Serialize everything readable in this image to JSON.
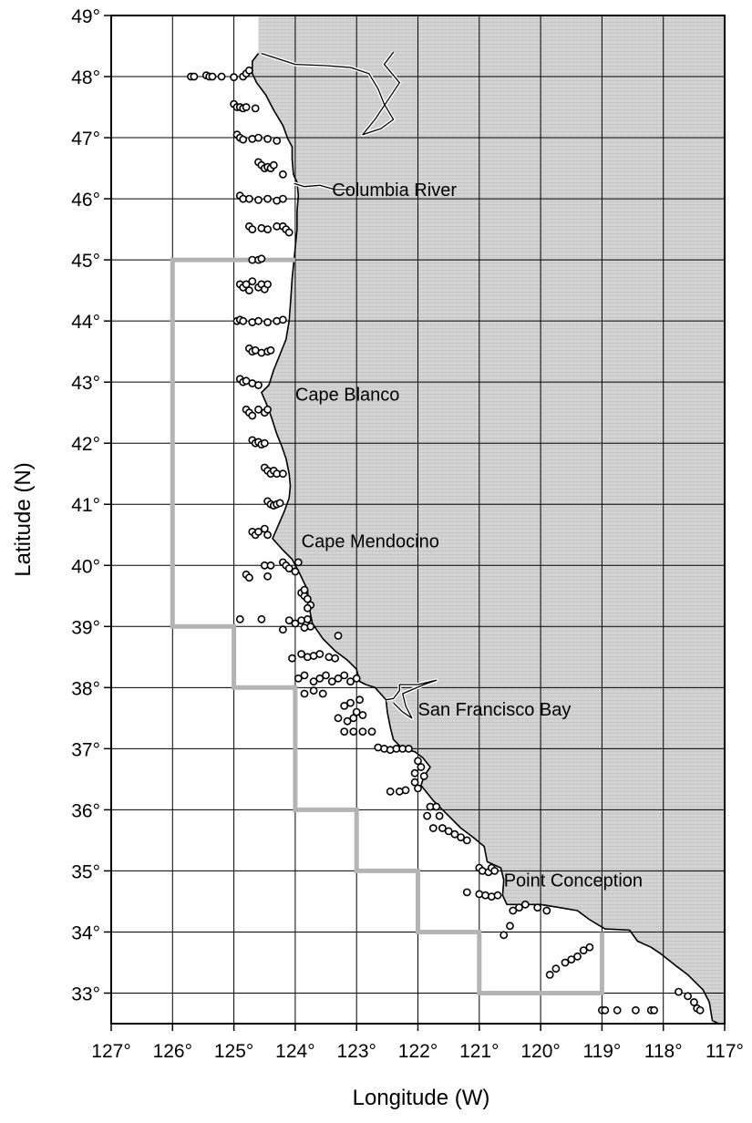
{
  "chart_data": {
    "type": "map",
    "title": "",
    "xlabel": "Longitude (W)",
    "ylabel": "Latitude (N)",
    "x_range": [
      127,
      117
    ],
    "y_range": [
      32.5,
      49
    ],
    "x_ticks": [
      127,
      126,
      125,
      124,
      123,
      122,
      121,
      120,
      119,
      118,
      117
    ],
    "y_ticks": [
      33,
      34,
      35,
      36,
      37,
      38,
      39,
      40,
      41,
      42,
      43,
      44,
      45,
      46,
      47,
      48,
      49
    ],
    "x_tick_labels": [
      "127°",
      "126°",
      "125°",
      "124°",
      "123°",
      "122°",
      "121°",
      "120°",
      "119°",
      "118°",
      "117°"
    ],
    "y_tick_labels": [
      "33°",
      "34°",
      "35°",
      "36°",
      "37°",
      "38°",
      "39°",
      "40°",
      "41°",
      "42°",
      "43°",
      "44°",
      "45°",
      "46°",
      "47°",
      "48°",
      "49°"
    ],
    "grid": true,
    "place_labels": [
      {
        "text": "Columbia River",
        "lon": 123.4,
        "lat": 46.15
      },
      {
        "text": "Cape Blanco",
        "lon": 124.0,
        "lat": 42.8
      },
      {
        "text": "Cape Mendocino",
        "lon": 123.9,
        "lat": 40.4
      },
      {
        "text": "San Francisco Bay",
        "lon": 122.0,
        "lat": 37.65
      },
      {
        "text": "Point Conception",
        "lon": 120.6,
        "lat": 34.85
      }
    ],
    "coastline": [
      [
        124.6,
        48.38
      ],
      [
        124.7,
        48.25
      ],
      [
        124.7,
        48.05
      ],
      [
        124.63,
        47.9
      ],
      [
        124.48,
        47.7
      ],
      [
        124.35,
        47.45
      ],
      [
        124.2,
        47.2
      ],
      [
        124.12,
        46.98
      ],
      [
        124.05,
        46.85
      ],
      [
        124.05,
        46.65
      ],
      [
        124.03,
        46.4
      ],
      [
        123.97,
        46.27
      ],
      [
        123.95,
        46.05
      ],
      [
        123.97,
        45.8
      ],
      [
        123.97,
        45.5
      ],
      [
        124.0,
        45.2
      ],
      [
        124.02,
        45.0
      ],
      [
        124.05,
        44.7
      ],
      [
        124.07,
        44.4
      ],
      [
        124.1,
        44.0
      ],
      [
        124.15,
        43.7
      ],
      [
        124.25,
        43.45
      ],
      [
        124.35,
        43.2
      ],
      [
        124.43,
        42.95
      ],
      [
        124.55,
        42.83
      ],
      [
        124.45,
        42.6
      ],
      [
        124.38,
        42.4
      ],
      [
        124.3,
        42.15
      ],
      [
        124.22,
        41.95
      ],
      [
        124.15,
        41.75
      ],
      [
        124.1,
        41.5
      ],
      [
        124.08,
        41.3
      ],
      [
        124.1,
        41.1
      ],
      [
        124.18,
        40.88
      ],
      [
        124.3,
        40.6
      ],
      [
        124.37,
        40.44
      ],
      [
        124.2,
        40.25
      ],
      [
        124.05,
        40.1
      ],
      [
        123.92,
        39.85
      ],
      [
        123.8,
        39.6
      ],
      [
        123.78,
        39.35
      ],
      [
        123.72,
        39.05
      ],
      [
        123.55,
        38.8
      ],
      [
        123.35,
        38.6
      ],
      [
        123.15,
        38.45
      ],
      [
        123.0,
        38.3
      ],
      [
        122.95,
        38.1
      ],
      [
        122.85,
        38.05
      ],
      [
        122.7,
        38.0
      ],
      [
        122.52,
        37.8
      ],
      [
        122.5,
        37.6
      ],
      [
        122.45,
        37.35
      ],
      [
        122.4,
        37.15
      ],
      [
        122.25,
        37.0
      ],
      [
        122.05,
        36.95
      ],
      [
        121.92,
        36.85
      ],
      [
        121.8,
        36.7
      ],
      [
        121.9,
        36.55
      ],
      [
        121.95,
        36.4
      ],
      [
        121.75,
        36.15
      ],
      [
        121.5,
        35.9
      ],
      [
        121.3,
        35.7
      ],
      [
        121.1,
        35.55
      ],
      [
        120.92,
        35.4
      ],
      [
        120.87,
        35.15
      ],
      [
        120.65,
        35.05
      ],
      [
        120.6,
        34.85
      ],
      [
        120.62,
        34.6
      ],
      [
        120.55,
        34.45
      ],
      [
        120.3,
        34.45
      ],
      [
        120.0,
        34.45
      ],
      [
        119.7,
        34.4
      ],
      [
        119.4,
        34.35
      ],
      [
        119.2,
        34.2
      ],
      [
        118.95,
        34.05
      ],
      [
        118.55,
        34.03
      ],
      [
        118.42,
        33.85
      ],
      [
        118.2,
        33.75
      ],
      [
        118.05,
        33.65
      ],
      [
        117.8,
        33.45
      ],
      [
        117.6,
        33.3
      ],
      [
        117.35,
        33.05
      ],
      [
        117.25,
        32.85
      ],
      [
        117.2,
        32.55
      ],
      [
        117.1,
        32.5
      ],
      [
        117.0,
        32.5
      ]
    ],
    "ocean_boundary": [
      [
        126,
        45
      ],
      [
        124,
        45
      ],
      [
        124,
        39
      ],
      [
        126,
        39
      ]
    ],
    "management_boundary": [
      [
        124,
        45
      ],
      [
        126,
        45
      ],
      [
        126,
        39
      ],
      [
        125,
        39
      ],
      [
        125,
        38
      ],
      [
        124,
        38
      ],
      [
        124,
        36
      ],
      [
        123,
        36
      ],
      [
        123,
        35
      ],
      [
        122,
        35
      ],
      [
        122,
        34
      ],
      [
        121,
        34
      ],
      [
        121,
        33
      ],
      [
        119,
        33
      ],
      [
        119,
        34
      ]
    ],
    "stations": [
      [
        125.7,
        48.0
      ],
      [
        125.65,
        48.0
      ],
      [
        125.45,
        48.02
      ],
      [
        125.4,
        48.0
      ],
      [
        125.35,
        48.0
      ],
      [
        125.2,
        48.0
      ],
      [
        125.0,
        47.99
      ],
      [
        124.85,
        48.0
      ],
      [
        124.8,
        48.05
      ],
      [
        124.75,
        48.1
      ],
      [
        125.0,
        47.55
      ],
      [
        124.95,
        47.5
      ],
      [
        124.9,
        47.5
      ],
      [
        124.85,
        47.48
      ],
      [
        124.8,
        47.5
      ],
      [
        124.65,
        47.48
      ],
      [
        124.95,
        47.05
      ],
      [
        124.9,
        47.0
      ],
      [
        124.85,
        46.97
      ],
      [
        124.7,
        46.98
      ],
      [
        124.6,
        47.0
      ],
      [
        124.45,
        46.98
      ],
      [
        124.3,
        46.95
      ],
      [
        124.6,
        46.6
      ],
      [
        124.55,
        46.55
      ],
      [
        124.5,
        46.5
      ],
      [
        124.45,
        46.52
      ],
      [
        124.4,
        46.5
      ],
      [
        124.35,
        46.55
      ],
      [
        124.2,
        46.4
      ],
      [
        124.9,
        46.05
      ],
      [
        124.85,
        46.0
      ],
      [
        124.75,
        46.0
      ],
      [
        124.6,
        45.98
      ],
      [
        124.45,
        46.0
      ],
      [
        124.3,
        45.97
      ],
      [
        124.2,
        46.0
      ],
      [
        124.75,
        45.55
      ],
      [
        124.7,
        45.5
      ],
      [
        124.55,
        45.52
      ],
      [
        124.45,
        45.5
      ],
      [
        124.3,
        45.55
      ],
      [
        124.2,
        45.55
      ],
      [
        124.15,
        45.5
      ],
      [
        124.1,
        45.45
      ],
      [
        124.7,
        45.0
      ],
      [
        124.6,
        45.0
      ],
      [
        124.55,
        45.02
      ],
      [
        124.9,
        44.6
      ],
      [
        124.85,
        44.55
      ],
      [
        124.8,
        44.6
      ],
      [
        124.75,
        44.5
      ],
      [
        124.7,
        44.65
      ],
      [
        124.6,
        44.55
      ],
      [
        124.55,
        44.6
      ],
      [
        124.5,
        44.52
      ],
      [
        124.45,
        44.6
      ],
      [
        124.95,
        44.0
      ],
      [
        124.9,
        44.02
      ],
      [
        124.85,
        44.0
      ],
      [
        124.7,
        43.98
      ],
      [
        124.6,
        44.0
      ],
      [
        124.45,
        43.98
      ],
      [
        124.3,
        44.0
      ],
      [
        124.2,
        44.02
      ],
      [
        124.75,
        43.55
      ],
      [
        124.7,
        43.5
      ],
      [
        124.65,
        43.52
      ],
      [
        124.55,
        43.48
      ],
      [
        124.45,
        43.5
      ],
      [
        124.4,
        43.52
      ],
      [
        124.9,
        43.05
      ],
      [
        124.85,
        43.0
      ],
      [
        124.8,
        43.02
      ],
      [
        124.7,
        42.98
      ],
      [
        124.6,
        42.95
      ],
      [
        124.8,
        42.55
      ],
      [
        124.75,
        42.5
      ],
      [
        124.7,
        42.45
      ],
      [
        124.6,
        42.55
      ],
      [
        124.5,
        42.5
      ],
      [
        124.45,
        42.55
      ],
      [
        124.7,
        42.05
      ],
      [
        124.65,
        42.0
      ],
      [
        124.6,
        42.02
      ],
      [
        124.55,
        41.98
      ],
      [
        124.5,
        42.0
      ],
      [
        124.5,
        41.6
      ],
      [
        124.45,
        41.55
      ],
      [
        124.4,
        41.5
      ],
      [
        124.35,
        41.55
      ],
      [
        124.3,
        41.5
      ],
      [
        124.2,
        41.5
      ],
      [
        124.45,
        41.05
      ],
      [
        124.4,
        41.0
      ],
      [
        124.35,
        40.98
      ],
      [
        124.3,
        41.0
      ],
      [
        124.25,
        41.02
      ],
      [
        124.7,
        40.55
      ],
      [
        124.65,
        40.5
      ],
      [
        124.6,
        40.55
      ],
      [
        124.5,
        40.6
      ],
      [
        124.45,
        40.5
      ],
      [
        124.2,
        40.05
      ],
      [
        124.15,
        40.0
      ],
      [
        124.1,
        39.95
      ],
      [
        124.0,
        39.9
      ],
      [
        123.95,
        40.05
      ],
      [
        124.5,
        40.0
      ],
      [
        124.4,
        40.0
      ],
      [
        124.8,
        39.85
      ],
      [
        124.75,
        39.8
      ],
      [
        124.45,
        39.82
      ],
      [
        123.9,
        39.55
      ],
      [
        123.85,
        39.5
      ],
      [
        123.8,
        39.45
      ],
      [
        123.85,
        39.6
      ],
      [
        123.75,
        39.35
      ],
      [
        123.8,
        39.3
      ],
      [
        124.9,
        39.12
      ],
      [
        124.55,
        39.12
      ],
      [
        124.1,
        39.1
      ],
      [
        124.0,
        39.05
      ],
      [
        123.9,
        39.1
      ],
      [
        123.8,
        39.12
      ],
      [
        123.75,
        39.0
      ],
      [
        123.85,
        38.98
      ],
      [
        124.2,
        38.95
      ],
      [
        124.05,
        38.48
      ],
      [
        123.9,
        38.55
      ],
      [
        123.8,
        38.5
      ],
      [
        123.7,
        38.52
      ],
      [
        123.6,
        38.55
      ],
      [
        123.45,
        38.5
      ],
      [
        123.35,
        38.48
      ],
      [
        123.3,
        38.85
      ],
      [
        123.95,
        38.15
      ],
      [
        123.85,
        38.2
      ],
      [
        123.7,
        38.1
      ],
      [
        123.6,
        38.15
      ],
      [
        123.5,
        38.2
      ],
      [
        123.4,
        38.1
      ],
      [
        123.3,
        38.15
      ],
      [
        123.2,
        38.2
      ],
      [
        123.1,
        38.1
      ],
      [
        123.0,
        38.15
      ],
      [
        123.85,
        37.9
      ],
      [
        123.7,
        37.95
      ],
      [
        123.55,
        37.9
      ],
      [
        123.2,
        37.7
      ],
      [
        123.1,
        37.75
      ],
      [
        123.0,
        37.6
      ],
      [
        122.95,
        37.8
      ],
      [
        122.9,
        37.55
      ],
      [
        123.3,
        37.5
      ],
      [
        123.15,
        37.45
      ],
      [
        123.05,
        37.5
      ],
      [
        123.2,
        37.28
      ],
      [
        123.05,
        37.28
      ],
      [
        122.9,
        37.28
      ],
      [
        122.75,
        37.28
      ],
      [
        122.65,
        37.02
      ],
      [
        122.55,
        37.0
      ],
      [
        122.45,
        36.98
      ],
      [
        122.35,
        37.0
      ],
      [
        122.25,
        37.0
      ],
      [
        122.15,
        37.0
      ],
      [
        122.0,
        36.8
      ],
      [
        121.95,
        36.7
      ],
      [
        122.05,
        36.6
      ],
      [
        121.9,
        36.55
      ],
      [
        122.05,
        36.45
      ],
      [
        122.0,
        36.35
      ],
      [
        122.2,
        36.32
      ],
      [
        122.3,
        36.3
      ],
      [
        122.45,
        36.3
      ],
      [
        121.8,
        36.05
      ],
      [
        121.7,
        36.05
      ],
      [
        121.85,
        35.9
      ],
      [
        121.65,
        35.9
      ],
      [
        121.75,
        35.7
      ],
      [
        121.6,
        35.7
      ],
      [
        121.5,
        35.65
      ],
      [
        121.4,
        35.6
      ],
      [
        121.3,
        35.55
      ],
      [
        121.2,
        35.5
      ],
      [
        121.0,
        35.05
      ],
      [
        120.95,
        35.0
      ],
      [
        120.85,
        34.98
      ],
      [
        120.8,
        35.05
      ],
      [
        120.75,
        35.0
      ],
      [
        121.2,
        34.65
      ],
      [
        121.0,
        34.62
      ],
      [
        120.9,
        34.6
      ],
      [
        120.8,
        34.58
      ],
      [
        120.7,
        34.6
      ],
      [
        120.45,
        34.35
      ],
      [
        120.35,
        34.4
      ],
      [
        120.25,
        34.45
      ],
      [
        120.05,
        34.4
      ],
      [
        119.9,
        34.35
      ],
      [
        120.5,
        34.1
      ],
      [
        120.6,
        33.95
      ],
      [
        119.85,
        33.3
      ],
      [
        119.75,
        33.4
      ],
      [
        119.6,
        33.5
      ],
      [
        119.5,
        33.55
      ],
      [
        119.4,
        33.6
      ],
      [
        119.3,
        33.7
      ],
      [
        119.2,
        33.75
      ],
      [
        119.0,
        32.72
      ],
      [
        118.95,
        32.72
      ],
      [
        118.75,
        32.72
      ],
      [
        118.45,
        32.72
      ],
      [
        118.2,
        32.72
      ],
      [
        118.15,
        32.72
      ],
      [
        117.75,
        33.02
      ],
      [
        117.6,
        32.95
      ],
      [
        117.5,
        32.85
      ],
      [
        117.45,
        32.75
      ],
      [
        117.4,
        32.72
      ]
    ]
  }
}
